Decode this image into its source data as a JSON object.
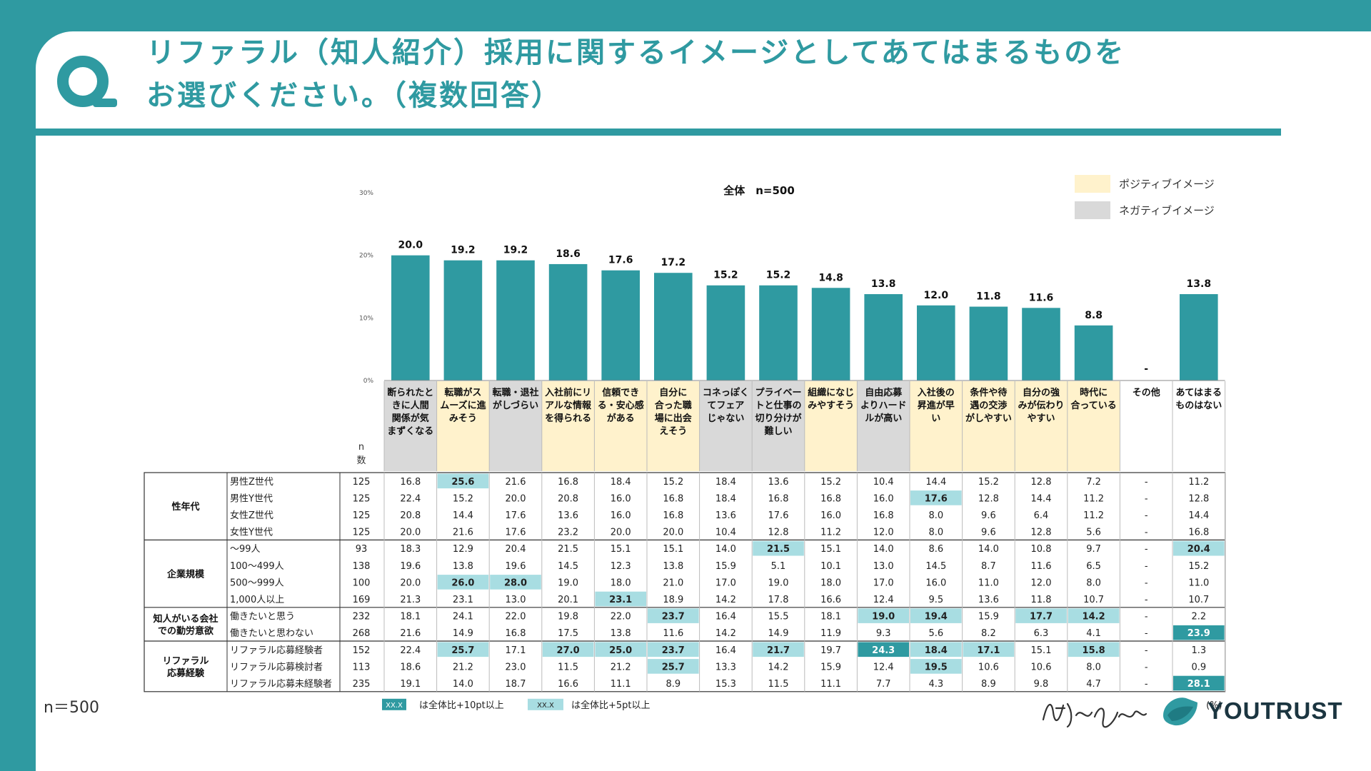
{
  "question": {
    "line1": "リファラル（知人紹介）採用に関するイメージとしてあてはまるものを",
    "line2": "お選びください。（複数回答）"
  },
  "footer": {
    "n_note": "n＝500",
    "signature": "僕と私と",
    "brand": "YOUTRUST"
  },
  "colors": {
    "accent": "#2f9aa1",
    "positive": "#fff2cc",
    "negative": "#d9d9d9",
    "hl10": "#2f9aa1",
    "hl5": "#a8dde2"
  },
  "chart_data": {
    "type": "bar",
    "title": "全体　n=500",
    "ylim": [
      0,
      30
    ],
    "yticks": [
      "0%",
      "10%",
      "20%",
      "30%"
    ],
    "legend": {
      "positive": "ポジティブイメージ",
      "negative": "ネガティブイメージ"
    },
    "categories": [
      {
        "label": [
          "断られたと",
          "きに人間",
          "関係が気",
          "まずくなる"
        ],
        "cls": "negative"
      },
      {
        "label": [
          "転職がス",
          "ムーズに進",
          "みそう"
        ],
        "cls": "positive"
      },
      {
        "label": [
          "転職・退社",
          "がしづらい"
        ],
        "cls": "negative"
      },
      {
        "label": [
          "入社前にリ",
          "アルな情報",
          "を得られる"
        ],
        "cls": "positive"
      },
      {
        "label": [
          "信頼でき",
          "る・安心感",
          "がある"
        ],
        "cls": "positive"
      },
      {
        "label": [
          "自分に",
          "合った職",
          "場に出会",
          "えそう"
        ],
        "cls": "positive"
      },
      {
        "label": [
          "コネっぽく",
          "てフェア",
          "じゃない"
        ],
        "cls": "negative"
      },
      {
        "label": [
          "プライベー",
          "トと仕事の",
          "切り分けが",
          "難しい"
        ],
        "cls": "negative"
      },
      {
        "label": [
          "組織になじ",
          "みやすそう"
        ],
        "cls": "positive"
      },
      {
        "label": [
          "自由応募",
          "よりハード",
          "ルが高い"
        ],
        "cls": "negative"
      },
      {
        "label": [
          "入社後の",
          "昇進が早",
          "い"
        ],
        "cls": "positive"
      },
      {
        "label": [
          "条件や待",
          "遇の交渉",
          "がしやすい"
        ],
        "cls": "positive"
      },
      {
        "label": [
          "自分の強",
          "みが伝わり",
          "やすい"
        ],
        "cls": "positive"
      },
      {
        "label": [
          "時代に",
          "合っている"
        ],
        "cls": "positive"
      },
      {
        "label": [
          "その他"
        ],
        "cls": "none"
      },
      {
        "label": [
          "あてはまる",
          "ものはない"
        ],
        "cls": "none"
      }
    ],
    "values": [
      20.0,
      19.2,
      19.2,
      18.6,
      17.6,
      17.2,
      15.2,
      15.2,
      14.8,
      13.8,
      12.0,
      11.8,
      11.6,
      8.8,
      null,
      13.8
    ],
    "value_labels": [
      "20.0",
      "19.2",
      "19.2",
      "18.6",
      "17.6",
      "17.2",
      "15.2",
      "15.2",
      "14.8",
      "13.8",
      "12.0",
      "11.8",
      "11.6",
      "8.8",
      "-",
      "13.8"
    ],
    "n_header": [
      "n",
      "数"
    ],
    "table": {
      "groups": [
        {
          "label": [
            "性年代"
          ],
          "rows": [
            {
              "name": "男性Z世代",
              "n": "125",
              "v": [
                "16.8",
                "25.6",
                "21.6",
                "16.8",
                "18.4",
                "15.2",
                "18.4",
                "13.6",
                "15.2",
                "10.4",
                "14.4",
                "15.2",
                "12.8",
                "7.2",
                "-",
                "11.2"
              ],
              "hl": [
                0,
                5,
                0,
                0,
                0,
                0,
                0,
                0,
                0,
                0,
                0,
                0,
                0,
                0,
                0,
                0
              ]
            },
            {
              "name": "男性Y世代",
              "n": "125",
              "v": [
                "22.4",
                "15.2",
                "20.0",
                "20.8",
                "16.0",
                "16.8",
                "18.4",
                "16.8",
                "16.8",
                "16.0",
                "17.6",
                "12.8",
                "14.4",
                "11.2",
                "-",
                "12.8"
              ],
              "hl": [
                0,
                0,
                0,
                0,
                0,
                0,
                0,
                0,
                0,
                0,
                5,
                0,
                0,
                0,
                0,
                0
              ]
            },
            {
              "name": "女性Z世代",
              "n": "125",
              "v": [
                "20.8",
                "14.4",
                "17.6",
                "13.6",
                "16.0",
                "16.8",
                "13.6",
                "17.6",
                "16.0",
                "16.8",
                "8.0",
                "9.6",
                "6.4",
                "11.2",
                "-",
                "14.4"
              ],
              "hl": [
                0,
                0,
                0,
                0,
                0,
                0,
                0,
                0,
                0,
                0,
                0,
                0,
                0,
                0,
                0,
                0
              ]
            },
            {
              "name": "女性Y世代",
              "n": "125",
              "v": [
                "20.0",
                "21.6",
                "17.6",
                "23.2",
                "20.0",
                "20.0",
                "10.4",
                "12.8",
                "11.2",
                "12.0",
                "8.0",
                "9.6",
                "12.8",
                "5.6",
                "-",
                "16.8"
              ],
              "hl": [
                0,
                0,
                0,
                0,
                0,
                0,
                0,
                0,
                0,
                0,
                0,
                0,
                0,
                0,
                0,
                0
              ]
            }
          ]
        },
        {
          "label": [
            "企業規模"
          ],
          "rows": [
            {
              "name": "～99人",
              "n": "93",
              "v": [
                "18.3",
                "12.9",
                "20.4",
                "21.5",
                "15.1",
                "15.1",
                "14.0",
                "21.5",
                "15.1",
                "14.0",
                "8.6",
                "14.0",
                "10.8",
                "9.7",
                "-",
                "20.4"
              ],
              "hl": [
                0,
                0,
                0,
                0,
                0,
                0,
                0,
                5,
                0,
                0,
                0,
                0,
                0,
                0,
                0,
                5
              ]
            },
            {
              "name": "100～499人",
              "n": "138",
              "v": [
                "19.6",
                "13.8",
                "19.6",
                "14.5",
                "12.3",
                "13.8",
                "15.9",
                "5.1",
                "10.1",
                "13.0",
                "14.5",
                "8.7",
                "11.6",
                "6.5",
                "-",
                "15.2"
              ],
              "hl": [
                0,
                0,
                0,
                0,
                0,
                0,
                0,
                0,
                0,
                0,
                0,
                0,
                0,
                0,
                0,
                0
              ]
            },
            {
              "name": "500～999人",
              "n": "100",
              "v": [
                "20.0",
                "26.0",
                "28.0",
                "19.0",
                "18.0",
                "21.0",
                "17.0",
                "19.0",
                "18.0",
                "17.0",
                "16.0",
                "11.0",
                "12.0",
                "8.0",
                "-",
                "11.0"
              ],
              "hl": [
                0,
                5,
                5,
                0,
                0,
                0,
                0,
                0,
                0,
                0,
                0,
                0,
                0,
                0,
                0,
                0
              ]
            },
            {
              "name": "1,000人以上",
              "n": "169",
              "v": [
                "21.3",
                "23.1",
                "13.0",
                "20.1",
                "23.1",
                "18.9",
                "14.2",
                "17.8",
                "16.6",
                "12.4",
                "9.5",
                "13.6",
                "11.8",
                "10.7",
                "-",
                "10.7"
              ],
              "hl": [
                0,
                0,
                0,
                0,
                5,
                0,
                0,
                0,
                0,
                0,
                0,
                0,
                0,
                0,
                0,
                0
              ]
            }
          ]
        },
        {
          "label": [
            "知人がいる会社",
            "での勤労意欲"
          ],
          "rows": [
            {
              "name": "働きたいと思う",
              "n": "232",
              "v": [
                "18.1",
                "24.1",
                "22.0",
                "19.8",
                "22.0",
                "23.7",
                "16.4",
                "15.5",
                "18.1",
                "19.0",
                "19.4",
                "15.9",
                "17.7",
                "14.2",
                "-",
                "2.2"
              ],
              "hl": [
                0,
                0,
                0,
                0,
                0,
                5,
                0,
                0,
                0,
                5,
                5,
                0,
                5,
                5,
                0,
                0
              ]
            },
            {
              "name": "働きたいと思わない",
              "n": "268",
              "v": [
                "21.6",
                "14.9",
                "16.8",
                "17.5",
                "13.8",
                "11.6",
                "14.2",
                "14.9",
                "11.9",
                "9.3",
                "5.6",
                "8.2",
                "6.3",
                "4.1",
                "-",
                "23.9"
              ],
              "hl": [
                0,
                0,
                0,
                0,
                0,
                0,
                0,
                0,
                0,
                0,
                0,
                0,
                0,
                0,
                0,
                10
              ]
            }
          ]
        },
        {
          "label": [
            "リファラル",
            "応募経験"
          ],
          "rows": [
            {
              "name": "リファラル応募経験者",
              "n": "152",
              "v": [
                "22.4",
                "25.7",
                "17.1",
                "27.0",
                "25.0",
                "23.7",
                "16.4",
                "21.7",
                "19.7",
                "24.3",
                "18.4",
                "17.1",
                "15.1",
                "15.8",
                "-",
                "1.3"
              ],
              "hl": [
                0,
                5,
                0,
                5,
                5,
                5,
                0,
                5,
                0,
                10,
                5,
                5,
                0,
                5,
                0,
                0
              ]
            },
            {
              "name": "リファラル応募検討者",
              "n": "113",
              "v": [
                "18.6",
                "21.2",
                "23.0",
                "11.5",
                "21.2",
                "25.7",
                "13.3",
                "14.2",
                "15.9",
                "12.4",
                "19.5",
                "10.6",
                "10.6",
                "8.0",
                "-",
                "0.9"
              ],
              "hl": [
                0,
                0,
                0,
                0,
                0,
                5,
                0,
                0,
                0,
                0,
                5,
                0,
                0,
                0,
                0,
                0
              ]
            },
            {
              "name": "リファラル応募未経験者",
              "n": "235",
              "v": [
                "19.1",
                "14.0",
                "18.7",
                "16.6",
                "11.1",
                "8.9",
                "15.3",
                "11.5",
                "11.1",
                "7.7",
                "4.3",
                "8.9",
                "9.8",
                "4.7",
                "-",
                "28.1"
              ],
              "hl": [
                0,
                0,
                0,
                0,
                0,
                0,
                0,
                0,
                0,
                0,
                0,
                0,
                0,
                0,
                0,
                10
              ]
            }
          ]
        }
      ],
      "legend": {
        "swatch_text": "XX.X",
        "hl10_label": "は全体比+10pt以上",
        "hl5_label": "は全体比+5pt以上",
        "unit": "(%)"
      }
    }
  }
}
